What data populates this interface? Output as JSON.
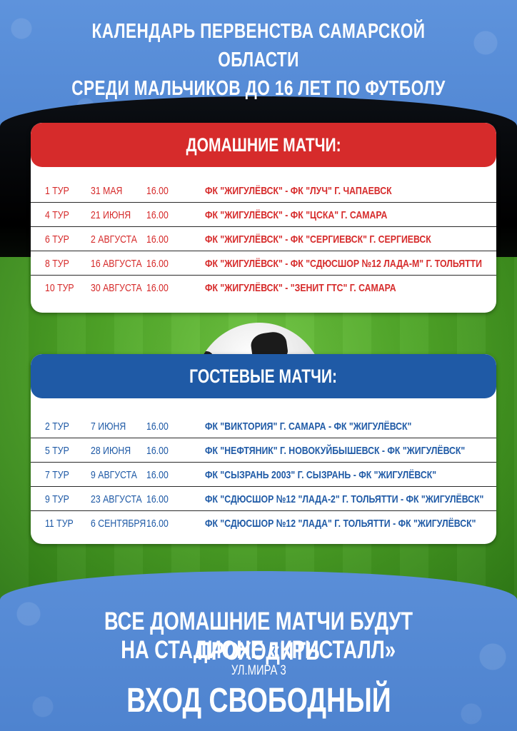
{
  "title": {
    "line1": "КАЛЕНДАРЬ ПЕРВЕНСТВА САМАРСКОЙ ОБЛАСТИ",
    "line2": "СРЕДИ МАЛЬЧИКОВ ДО 16 ЛЕТ ПО ФУТБОЛУ"
  },
  "home": {
    "heading": "ДОМАШНИЕ МАТЧИ:",
    "rows": [
      {
        "round": "1 ТУР",
        "date": "31 МАЯ",
        "time": "16.00",
        "match": "ФК \"ЖИГУЛЁВСК\" - ФК \"ЛУЧ\" Г. ЧАПАЕВСК"
      },
      {
        "round": "4 ТУР",
        "date": "21 ИЮНЯ",
        "time": "16.00",
        "match": "ФК \"ЖИГУЛЁВСК\" - ФК \"ЦСКА\" Г. САМАРА"
      },
      {
        "round": "6 ТУР",
        "date": "2 АВГУСТА",
        "time": "16.00",
        "match": "ФК \"ЖИГУЛЁВСК\" - ФК \"СЕРГИЕВСК\" Г. СЕРГИЕВСК"
      },
      {
        "round": "8 ТУР",
        "date": "16 АВГУСТА",
        "time": "16.00",
        "match": "ФК \"ЖИГУЛЁВСК\" - ФК \"СДЮСШОР №12 ЛАДА-М\" Г. ТОЛЬЯТТИ"
      },
      {
        "round": "10 ТУР",
        "date": "30 АВГУСТА",
        "time": "16.00",
        "match": "ФК \"ЖИГУЛЁВСК\" - \"ЗЕНИТ ГТС\" Г. САМАРА"
      }
    ]
  },
  "away": {
    "heading": "ГОСТЕВЫЕ МАТЧИ:",
    "rows": [
      {
        "round": "2 ТУР",
        "date": "7 ИЮНЯ",
        "time": "16.00",
        "match": "ФК \"ВИКТОРИЯ\" Г. САМАРА - ФК \"ЖИГУЛЁВСК\""
      },
      {
        "round": "5 ТУР",
        "date": "28 ИЮНЯ",
        "time": "16.00",
        "match": "ФК \"НЕФТЯНИК\" Г. НОВОКУЙБЫШЕВСК - ФК \"ЖИГУЛЁВСК\""
      },
      {
        "round": "7 ТУР",
        "date": "9 АВГУСТА",
        "time": "16.00",
        "match": "ФК \"СЫЗРАНЬ 2003\" Г. СЫЗРАНЬ - ФК \"ЖИГУЛЁВСК\""
      },
      {
        "round": "9 ТУР",
        "date": "23 АВГУСТА",
        "time": "16.00",
        "match": "ФК \"СДЮСШОР №12 \"ЛАДА-2\" Г. ТОЛЬЯТТИ - ФК \"ЖИГУЛЁВСК\""
      },
      {
        "round": "11 ТУР",
        "date": "6 СЕНТЯБРЯ",
        "time": "16.00",
        "match": "ФК \"СДЮСШОР №12 \"ЛАДА\" Г. ТОЛЬЯТТИ - ФК \"ЖИГУЛЁВСК\""
      }
    ]
  },
  "footer": {
    "line1": "ВСЕ ДОМАШНИЕ МАТЧИ БУДУТ ПРОХОДИТЬ",
    "line2": "НА СТАДИОНЕ «КРИСТАЛЛ»",
    "address": "УЛ.МИРА 3",
    "entry": "ВХОД СВОБОДНЫЙ"
  },
  "colors": {
    "home_accent": "#d62b2b",
    "away_accent": "#1f5aa6",
    "background": "#5b8fd6"
  }
}
